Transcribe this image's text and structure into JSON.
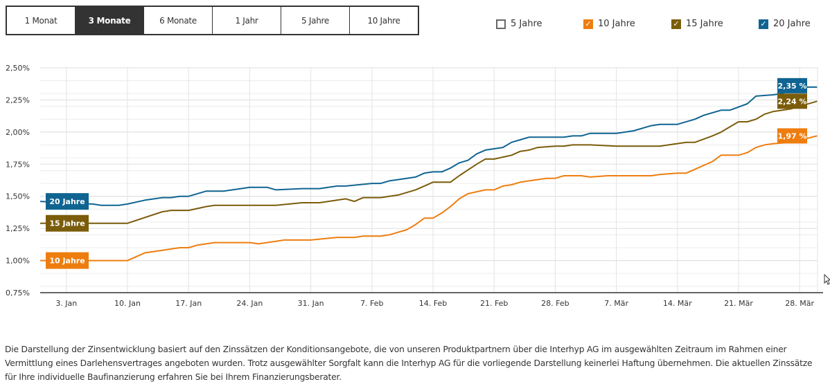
{
  "range_tabs": [
    {
      "label": "1 Monat",
      "active": false
    },
    {
      "label": "3 Monate",
      "active": true
    },
    {
      "label": "6 Monate",
      "active": false
    },
    {
      "label": "1 Jahr",
      "active": false
    },
    {
      "label": "5 Jahre",
      "active": false
    },
    {
      "label": "10 Jahre",
      "active": false
    }
  ],
  "legend": [
    {
      "label": "5 Jahre",
      "checked": false,
      "color": "#666666"
    },
    {
      "label": "10 Jahre",
      "checked": true,
      "color": "#ee7d0f"
    },
    {
      "label": "15 Jahre",
      "checked": true,
      "color": "#7a5c0a"
    },
    {
      "label": "20 Jahre",
      "checked": true,
      "color": "#0f6491"
    }
  ],
  "chart_data": {
    "type": "line",
    "title": "",
    "xlabel": "",
    "ylabel": "",
    "ylim": [
      0.75,
      2.5
    ],
    "y_ticks": [
      "2,50%",
      "2,25%",
      "2,00%",
      "1,75%",
      "1,50%",
      "1,25%",
      "1,00%",
      "0,75%"
    ],
    "y_tick_values": [
      2.5,
      2.25,
      2.0,
      1.75,
      1.5,
      1.25,
      1.0,
      0.75
    ],
    "x_ticks": [
      "3. Jan",
      "10. Jan",
      "17. Jan",
      "24. Jan",
      "31. Jan",
      "7. Feb",
      "14. Feb",
      "21. Feb",
      "28. Feb",
      "7. Mär",
      "14. Mär",
      "21. Mär",
      "28. Mär"
    ],
    "x_tick_days": [
      3,
      10,
      17,
      24,
      31,
      38,
      45,
      52,
      59,
      66,
      73,
      80,
      87
    ],
    "x_domain_days": [
      0,
      89
    ],
    "grid": true,
    "series": [
      {
        "name": "20 Jahre",
        "color": "#0f6491",
        "start_label": "20 Jahre",
        "end_label": "2,35 %",
        "days": [
          0,
          6,
          7,
          9,
          10,
          12,
          14,
          15,
          16,
          17,
          19,
          20,
          21,
          23,
          24,
          26,
          27,
          30,
          32,
          34,
          35,
          38,
          39,
          40,
          41,
          43,
          44,
          45,
          46,
          47,
          48,
          49,
          50,
          51,
          52,
          53,
          54,
          55,
          56,
          60,
          61,
          62,
          63,
          66,
          68,
          70,
          71,
          73,
          75,
          76,
          78,
          79,
          81,
          82,
          84,
          85,
          87,
          89
        ],
        "values": [
          1.46,
          1.44,
          1.43,
          1.43,
          1.44,
          1.47,
          1.49,
          1.49,
          1.5,
          1.5,
          1.54,
          1.54,
          1.54,
          1.56,
          1.57,
          1.57,
          1.55,
          1.56,
          1.56,
          1.58,
          1.58,
          1.6,
          1.6,
          1.62,
          1.63,
          1.65,
          1.68,
          1.69,
          1.69,
          1.72,
          1.76,
          1.78,
          1.83,
          1.86,
          1.87,
          1.88,
          1.92,
          1.94,
          1.96,
          1.96,
          1.97,
          1.97,
          1.99,
          1.99,
          2.01,
          2.05,
          2.06,
          2.06,
          2.1,
          2.13,
          2.17,
          2.17,
          2.22,
          2.28,
          2.29,
          2.3,
          2.35,
          2.35
        ]
      },
      {
        "name": "15 Jahre",
        "color": "#7a5c0a",
        "start_label": "15 Jahre",
        "end_label": "2,24 %",
        "days": [
          0,
          3,
          10,
          14,
          15,
          17,
          19,
          20,
          26,
          27,
          30,
          32,
          34,
          35,
          36,
          37,
          39,
          41,
          43,
          44,
          45,
          47,
          48,
          50,
          51,
          52,
          54,
          55,
          56,
          57,
          59,
          60,
          61,
          63,
          66,
          68,
          69,
          71,
          72,
          74,
          75,
          77,
          78,
          79,
          80,
          81,
          82,
          83,
          84,
          85,
          86,
          89
        ],
        "values": [
          1.29,
          1.29,
          1.29,
          1.38,
          1.39,
          1.39,
          1.42,
          1.43,
          1.43,
          1.43,
          1.45,
          1.45,
          1.47,
          1.48,
          1.46,
          1.49,
          1.49,
          1.51,
          1.55,
          1.58,
          1.61,
          1.61,
          1.66,
          1.75,
          1.79,
          1.79,
          1.82,
          1.85,
          1.86,
          1.88,
          1.89,
          1.89,
          1.9,
          1.9,
          1.89,
          1.89,
          1.89,
          1.89,
          1.9,
          1.92,
          1.92,
          1.97,
          2.0,
          2.04,
          2.08,
          2.08,
          2.1,
          2.14,
          2.16,
          2.17,
          2.18,
          2.24
        ]
      },
      {
        "name": "10 Jahre",
        "color": "#ee7d0f",
        "start_label": "10 Jahre",
        "end_label": "1,97 %",
        "days": [
          0,
          4,
          10,
          12,
          13,
          14,
          16,
          17,
          18,
          20,
          24,
          25,
          27,
          28,
          31,
          34,
          35,
          36,
          37,
          39,
          40,
          41,
          42,
          43,
          44,
          45,
          46,
          47,
          48,
          49,
          51,
          52,
          53,
          54,
          55,
          56,
          58,
          59,
          60,
          62,
          63,
          65,
          66,
          70,
          71,
          73,
          74,
          75,
          76,
          77,
          78,
          79,
          80,
          81,
          82,
          83,
          84,
          86,
          89
        ],
        "values": [
          1.0,
          1.0,
          1.0,
          1.06,
          1.07,
          1.08,
          1.1,
          1.1,
          1.12,
          1.14,
          1.14,
          1.13,
          1.15,
          1.16,
          1.16,
          1.18,
          1.18,
          1.18,
          1.19,
          1.19,
          1.2,
          1.22,
          1.24,
          1.28,
          1.33,
          1.33,
          1.37,
          1.42,
          1.48,
          1.52,
          1.55,
          1.55,
          1.58,
          1.59,
          1.61,
          1.62,
          1.64,
          1.64,
          1.66,
          1.66,
          1.65,
          1.66,
          1.66,
          1.66,
          1.67,
          1.68,
          1.68,
          1.71,
          1.74,
          1.77,
          1.82,
          1.82,
          1.82,
          1.84,
          1.88,
          1.9,
          1.91,
          1.92,
          1.97
        ]
      }
    ]
  },
  "footnote": "Die Darstellung der Zinsentwicklung basiert auf den Zinssätzen der Konditionsangebote, die von unseren Produktpartnern über die Interhyp AG im ausgewählten Zeitraum im Rahmen einer Vermittlung eines Darlehensvertrages angeboten wurden. Trotz ausgewählter Sorgfalt kann die Interhyp AG für die vorliegende Darstellung keinerlei Haftung übernehmen. Die aktuellen Zinssätze für Ihre individuelle Baufinanzierung erfahren Sie bei Ihrem Finanzierungsberater."
}
